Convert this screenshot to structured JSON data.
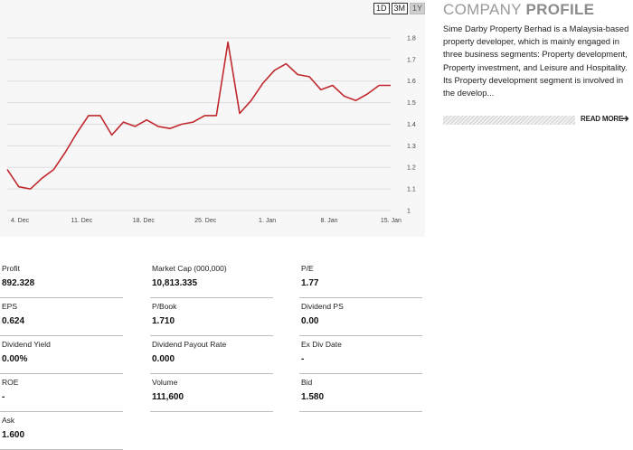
{
  "range_buttons": [
    "1D",
    "3M",
    "1Y"
  ],
  "active_range": "1Y",
  "chart_data": {
    "type": "line",
    "x_tick_labels": [
      "4. Dec",
      "11. Dec",
      "18. Dec",
      "25. Dec",
      "1. Jan",
      "8. Jan",
      "15. Jan"
    ],
    "y_tick_labels": [
      "1",
      "1.1",
      "1.2",
      "1.3",
      "1.4",
      "1.5",
      "1.6",
      "1.7",
      "1.8"
    ],
    "ylim": [
      1,
      1.85
    ],
    "line_color": "#c0282d",
    "series": [
      {
        "values": [
          1.19,
          1.11,
          1.1,
          1.15,
          1.19,
          1.27,
          1.36,
          1.44,
          1.44,
          1.35,
          1.41,
          1.39,
          1.42,
          1.39,
          1.38,
          1.4,
          1.41,
          1.44,
          1.44,
          1.78,
          1.45,
          1.51,
          1.59,
          1.65,
          1.68,
          1.63,
          1.62,
          1.56,
          1.58,
          1.53,
          1.51,
          1.54,
          1.58,
          1.58
        ]
      }
    ]
  },
  "profile": {
    "title_light": "COMPANY",
    "title_bold": "PROFILE",
    "text": "Sime Darby Property Berhad is a Malaysia-based property developer, which is mainly engaged in three business segments: Property development, Property investment, and Leisure and Hospitality. Its Property development segment is involved in the develop...",
    "read_more": "READ MORE"
  },
  "stats": [
    {
      "label": "Profit",
      "value": "892.328"
    },
    {
      "label": "Market Cap   (000,000)",
      "value": "10,813.335"
    },
    {
      "label": "P/E",
      "value": "1.77"
    },
    {
      "label": "EPS",
      "value": "0.624"
    },
    {
      "label": "P/Book",
      "value": "1.710"
    },
    {
      "label": "Dividend PS",
      "value": "0.00"
    },
    {
      "label": "Dividend Yield",
      "value": "0.00%"
    },
    {
      "label": "Dividend Payout Rate",
      "value": "0.000"
    },
    {
      "label": "Ex Div Date",
      "value": "-"
    },
    {
      "label": "ROE",
      "value": "-"
    },
    {
      "label": "Volume",
      "value": "111,600"
    },
    {
      "label": "Bid",
      "value": "1.580"
    },
    {
      "label": "Ask",
      "value": "1.600"
    }
  ]
}
